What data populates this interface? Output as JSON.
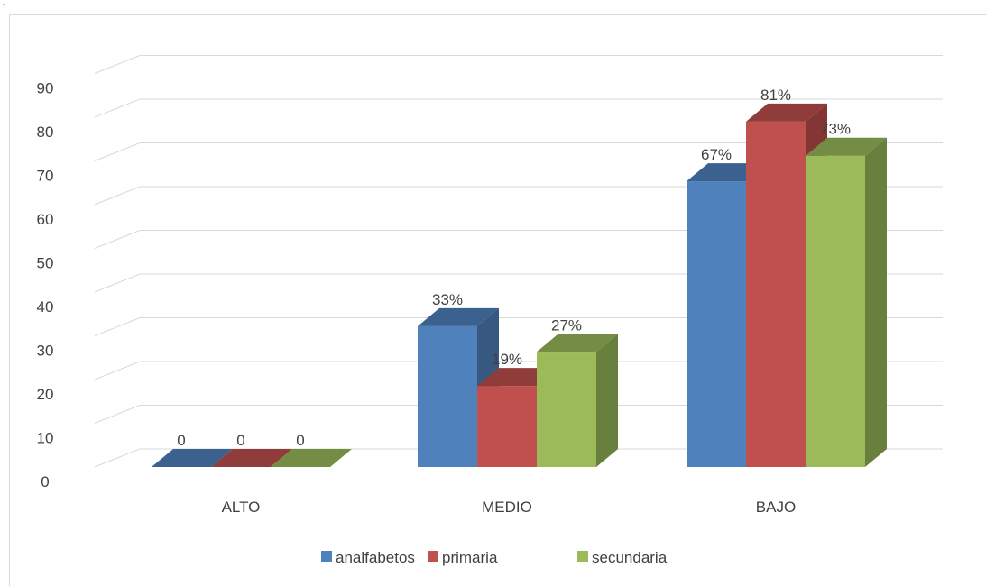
{
  "corner_mark": ".",
  "chart_data": {
    "type": "bar",
    "style": "3d-clustered-column",
    "categories": [
      "ALTO",
      "MEDIO",
      "BAJO"
    ],
    "series": [
      {
        "name": "analfabetos",
        "color": "#4f81bd",
        "values": [
          0,
          33,
          67
        ],
        "labels": [
          "0",
          "33%",
          "67%"
        ]
      },
      {
        "name": "primaria",
        "color": "#c0504d",
        "values": [
          0,
          19,
          81
        ],
        "labels": [
          "0",
          "19%",
          "81%"
        ]
      },
      {
        "name": "secundaria",
        "color": "#9bbb59",
        "values": [
          0,
          27,
          73
        ],
        "labels": [
          "0",
          "27%",
          "73%"
        ]
      }
    ],
    "yticks": [
      "0",
      "10",
      "20",
      "30",
      "40",
      "50",
      "60",
      "70",
      "80",
      "90"
    ],
    "ylim": [
      0,
      90
    ],
    "grid": true,
    "legend_position": "bottom"
  }
}
